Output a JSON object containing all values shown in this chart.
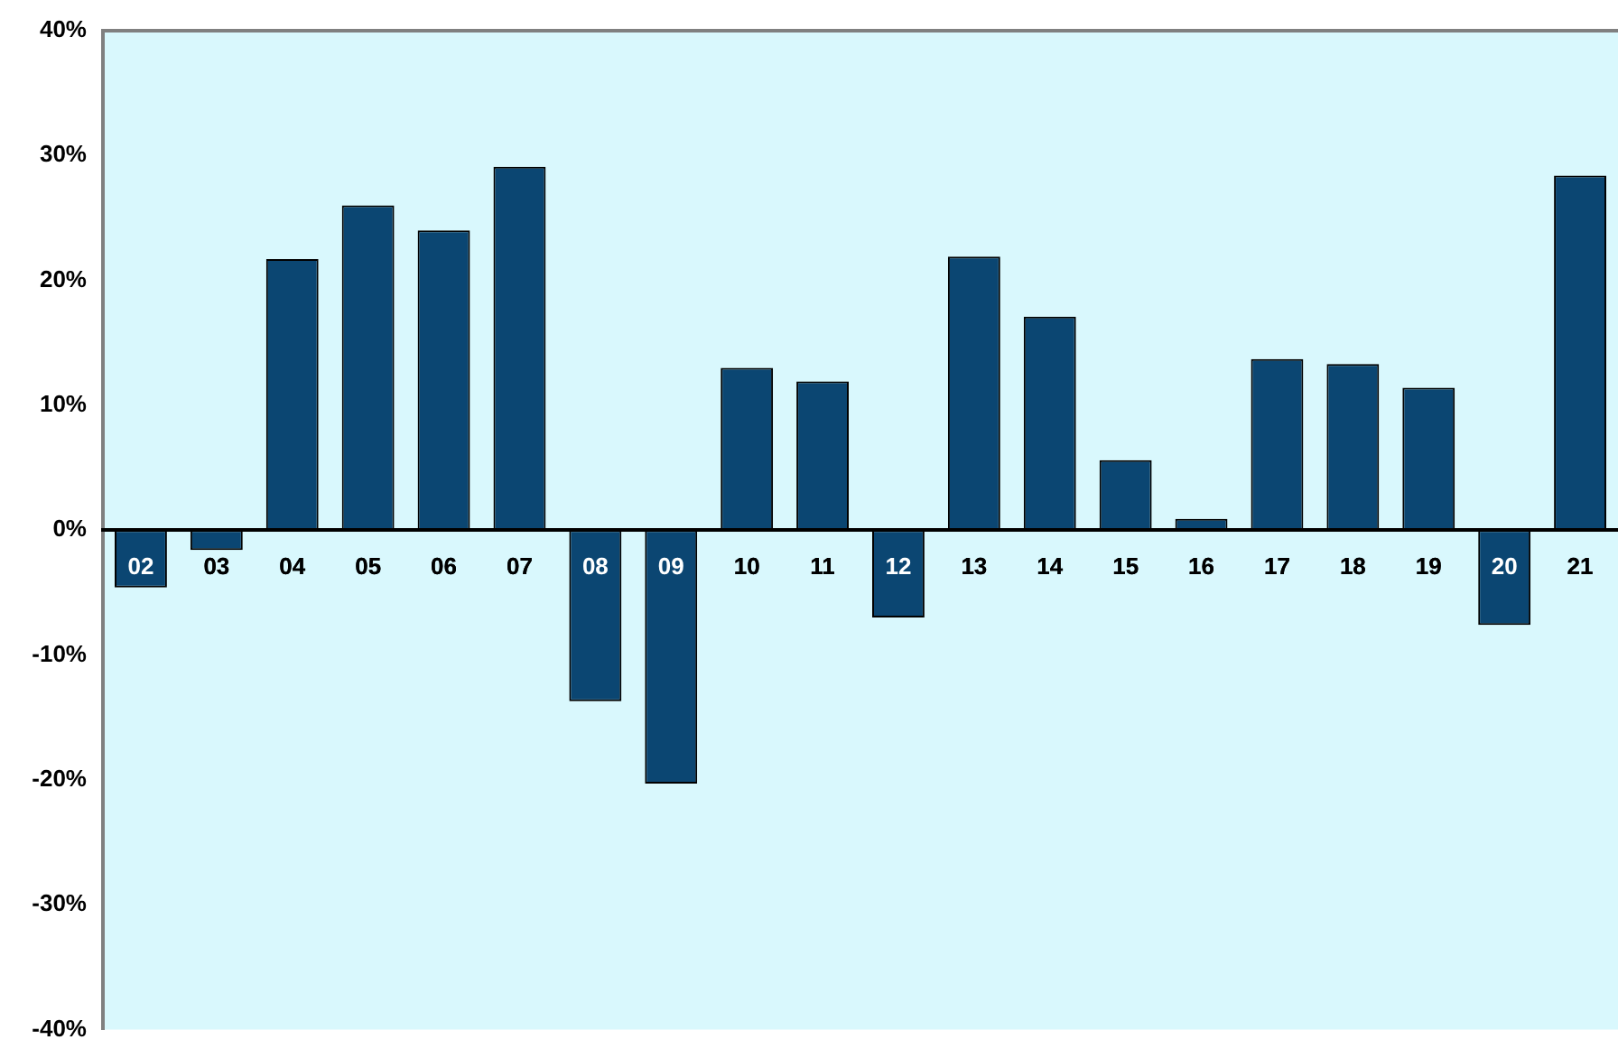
{
  "chart_data": {
    "type": "bar",
    "categories": [
      "02",
      "03",
      "04",
      "05",
      "06",
      "07",
      "08",
      "09",
      "10",
      "11",
      "12",
      "13",
      "14",
      "15",
      "16",
      "17",
      "18",
      "19",
      "20",
      "21"
    ],
    "values": [
      -4.6,
      -1.6,
      21.7,
      26.0,
      24.0,
      29.1,
      -13.7,
      -20.3,
      13.0,
      11.9,
      -7.0,
      21.9,
      17.1,
      5.6,
      0.9,
      13.7,
      13.3,
      11.4,
      -7.6,
      28.4
    ],
    "color": "#0b4672",
    "ylim": [
      -40,
      40
    ],
    "yticks": [
      {
        "value": -40,
        "label": "-40%"
      },
      {
        "value": -30,
        "label": "-30%"
      },
      {
        "value": -20,
        "label": "-20%"
      },
      {
        "value": -10,
        "label": "-10%"
      },
      {
        "value": 0,
        "label": "0%"
      },
      {
        "value": 10,
        "label": "10%"
      },
      {
        "value": 20,
        "label": "20%"
      },
      {
        "value": 30,
        "label": "30%"
      },
      {
        "value": 40,
        "label": "40%"
      }
    ],
    "grid": false,
    "legend": false
  }
}
